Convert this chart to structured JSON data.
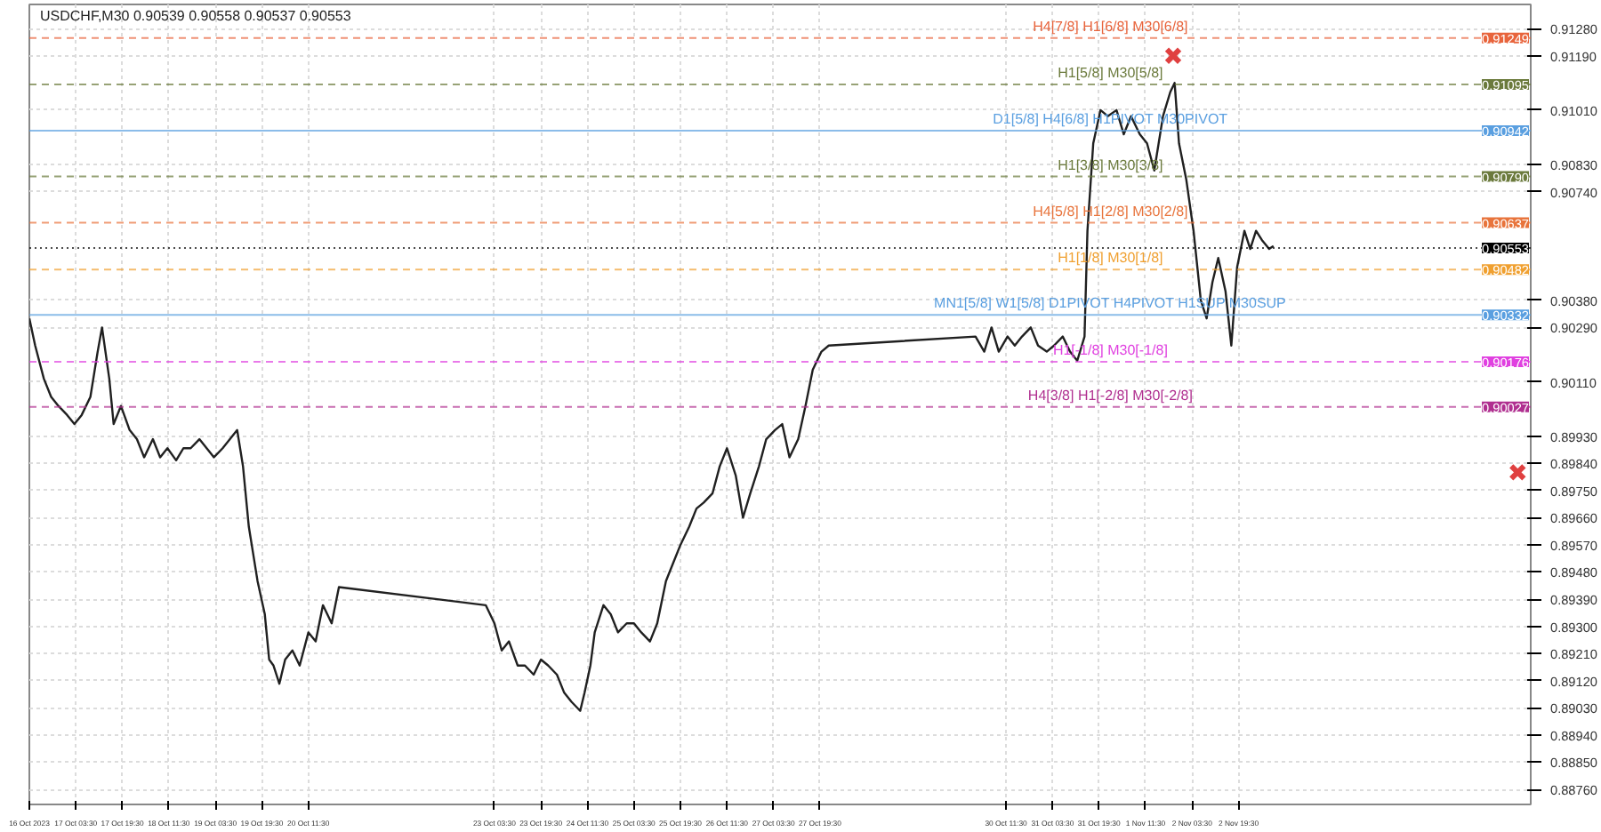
{
  "chart_data": {
    "type": "line",
    "title": "USDCHF,M30  0.90539 0.90558 0.90537 0.90553",
    "xlim": [
      "2023-10-16T11:30",
      "2023-11-07T00:00"
    ],
    "ylim": [
      0.8871,
      0.9136
    ],
    "xticks": [
      {
        "value": "2023-10-16T11:30",
        "label": "16 Oct 2023"
      },
      {
        "value": "2023-10-17T03:30",
        "label": "17 Oct 03:30"
      },
      {
        "value": "2023-10-17T19:30",
        "label": "17 Oct 19:30"
      },
      {
        "value": "2023-10-18T11:30",
        "label": "18 Oct 11:30"
      },
      {
        "value": "2023-10-19T03:30",
        "label": "19 Oct 03:30"
      },
      {
        "value": "2023-10-19T19:30",
        "label": "19 Oct 19:30"
      },
      {
        "value": "2023-10-20T11:30",
        "label": "20 Oct 11:30"
      },
      {
        "value": "2023-10-23T03:30",
        "label": "23 Oct 03:30"
      },
      {
        "value": "2023-10-23T19:30",
        "label": "23 Oct 19:30"
      },
      {
        "value": "2023-10-24T11:30",
        "label": "24 Oct 11:30"
      },
      {
        "value": "2023-10-25T03:30",
        "label": "25 Oct 03:30"
      },
      {
        "value": "2023-10-25T19:30",
        "label": "25 Oct 19:30"
      },
      {
        "value": "2023-10-26T11:30",
        "label": "26 Oct 11:30"
      },
      {
        "value": "2023-10-27T03:30",
        "label": "27 Oct 03:30"
      },
      {
        "value": "2023-10-27T19:30",
        "label": "27 Oct 19:30"
      },
      {
        "value": "2023-10-30T11:30",
        "label": "30 Oct 11:30"
      },
      {
        "value": "2023-10-31T03:30",
        "label": "31 Oct 03:30"
      },
      {
        "value": "2023-10-31T19:30",
        "label": "31 Oct 19:30"
      },
      {
        "value": "2023-11-01T11:30",
        "label": "1 Nov 11:30"
      },
      {
        "value": "2023-11-02T03:30",
        "label": "2 Nov 03:30"
      },
      {
        "value": "2023-11-02T19:30",
        "label": "2 Nov 19:30"
      }
    ],
    "yticks": [
      {
        "value": 0.9128,
        "label": "0.91280"
      },
      {
        "value": 0.9119,
        "label": "0.91190"
      },
      {
        "value": 0.9101,
        "label": "0.91010"
      },
      {
        "value": 0.9083,
        "label": "0.90830"
      },
      {
        "value": 0.9074,
        "label": "0.90740"
      },
      {
        "value": 0.9038,
        "label": "0.90380"
      },
      {
        "value": 0.9029,
        "label": "0.90290"
      },
      {
        "value": 0.9011,
        "label": "0.90110"
      },
      {
        "value": 0.8993,
        "label": "0.89930"
      },
      {
        "value": 0.8984,
        "label": "0.89840"
      },
      {
        "value": 0.8975,
        "label": "0.89750"
      },
      {
        "value": 0.8966,
        "label": "0.89660"
      },
      {
        "value": 0.8957,
        "label": "0.89570"
      },
      {
        "value": 0.8948,
        "label": "0.89480"
      },
      {
        "value": 0.8939,
        "label": "0.89390"
      },
      {
        "value": 0.893,
        "label": "0.89300"
      },
      {
        "value": 0.8921,
        "label": "0.89210"
      },
      {
        "value": 0.8912,
        "label": "0.89120"
      },
      {
        "value": 0.8903,
        "label": "0.89030"
      },
      {
        "value": 0.8894,
        "label": "0.88940"
      },
      {
        "value": 0.8885,
        "label": "0.88850"
      },
      {
        "value": 0.8876,
        "label": "0.88760"
      }
    ],
    "grid": true,
    "annotations": [
      "0.91249",
      "0.91095",
      "0.90942",
      "0.90790",
      "0.90637",
      "0.90553",
      "0.90482",
      "0.90332",
      "0.90176",
      "0.90027"
    ],
    "series": [
      {
        "color": "#202020",
        "line_style": "solid",
        "x": [
          "2023-10-16T11:30",
          "2023-10-16T13:30",
          "2023-10-16T16:30",
          "2023-10-16T19:00",
          "2023-10-16T21:30",
          "2023-10-17T00:30",
          "2023-10-17T03:00",
          "2023-10-17T05:30",
          "2023-10-17T08:30",
          "2023-10-17T11:00",
          "2023-10-17T12:30",
          "2023-10-17T15:00",
          "2023-10-17T16:30",
          "2023-10-17T19:00",
          "2023-10-17T22:00",
          "2023-10-18T00:30",
          "2023-10-18T03:00",
          "2023-10-18T06:00",
          "2023-10-18T08:30",
          "2023-10-18T11:00",
          "2023-10-18T14:00",
          "2023-10-18T16:30",
          "2023-10-18T19:00",
          "2023-10-18T22:00",
          "2023-10-19T00:30",
          "2023-10-19T03:00",
          "2023-10-19T06:00",
          "2023-10-19T08:30",
          "2023-10-19T11:00",
          "2023-10-19T13:00",
          "2023-10-19T15:00",
          "2023-10-19T18:00",
          "2023-10-19T20:30",
          "2023-10-19T22:00",
          "2023-10-19T23:30",
          "2023-10-20T01:30",
          "2023-10-20T03:30",
          "2023-10-20T06:00",
          "2023-10-20T08:30",
          "2023-10-20T11:30",
          "2023-10-20T14:00",
          "2023-10-20T16:30",
          "2023-10-20T19:30",
          "2023-10-20T22:00",
          "2023-10-23T00:30",
          "2023-10-23T03:30",
          "2023-10-23T06:00",
          "2023-10-23T08:30",
          "2023-10-23T11:30",
          "2023-10-23T14:00",
          "2023-10-23T17:00",
          "2023-10-23T19:30",
          "2023-10-23T22:00",
          "2023-10-24T01:00",
          "2023-10-24T03:30",
          "2023-10-24T06:00",
          "2023-10-24T09:00",
          "2023-10-24T10:30",
          "2023-10-24T12:30",
          "2023-10-24T14:00",
          "2023-10-24T17:00",
          "2023-10-24T19:30",
          "2023-10-24T22:00",
          "2023-10-25T01:00",
          "2023-10-25T03:30",
          "2023-10-25T06:00",
          "2023-10-25T09:00",
          "2023-10-25T11:30",
          "2023-10-25T14:30",
          "2023-10-25T17:00",
          "2023-10-25T19:30",
          "2023-10-25T22:30",
          "2023-10-26T01:00",
          "2023-10-26T03:30",
          "2023-10-26T06:30",
          "2023-10-26T09:00",
          "2023-10-26T11:30",
          "2023-10-26T14:30",
          "2023-10-26T17:00",
          "2023-10-26T19:30",
          "2023-10-26T22:30",
          "2023-10-27T01:00",
          "2023-10-27T04:00",
          "2023-10-27T06:30",
          "2023-10-27T09:00",
          "2023-10-27T12:00",
          "2023-10-27T14:30",
          "2023-10-27T17:00",
          "2023-10-27T20:00",
          "2023-10-27T22:30",
          "2023-10-30T01:00",
          "2023-10-30T04:00",
          "2023-10-30T06:30",
          "2023-10-30T09:00",
          "2023-10-30T12:00",
          "2023-10-30T14:30",
          "2023-10-30T17:00",
          "2023-10-30T20:00",
          "2023-10-30T22:30",
          "2023-10-31T01:30",
          "2023-10-31T04:00",
          "2023-10-31T07:00",
          "2023-10-31T09:30",
          "2023-10-31T12:00",
          "2023-10-31T14:30",
          "2023-10-31T15:30",
          "2023-10-31T17:30",
          "2023-10-31T20:00",
          "2023-10-31T22:30",
          "2023-11-01T01:30",
          "2023-11-01T04:00",
          "2023-11-01T06:30",
          "2023-11-01T09:30",
          "2023-11-01T12:00",
          "2023-11-01T14:30",
          "2023-11-01T17:30",
          "2023-11-01T20:00",
          "2023-11-01T21:30",
          "2023-11-01T23:00",
          "2023-11-02T01:30",
          "2023-11-02T04:00",
          "2023-11-02T06:30",
          "2023-11-02T08:30",
          "2023-11-02T10:30",
          "2023-11-02T12:30",
          "2023-11-02T15:00",
          "2023-11-02T17:00",
          "2023-11-02T19:00",
          "2023-11-02T21:30",
          "2023-11-02T23:30",
          "2023-11-03T01:30",
          "2023-11-03T03:30",
          "2023-11-03T06:00",
          "2023-11-03T07:30"
        ],
        "values": [
          0.9032,
          0.9023,
          0.9012,
          0.9006,
          0.9003,
          0.9,
          0.8997,
          0.9,
          0.9006,
          0.9021,
          0.9029,
          0.9012,
          0.8997,
          0.9003,
          0.8995,
          0.8992,
          0.8986,
          0.8992,
          0.8986,
          0.8989,
          0.8985,
          0.8989,
          0.8989,
          0.8992,
          0.8989,
          0.8986,
          0.8989,
          0.8992,
          0.8995,
          0.8983,
          0.8963,
          0.8945,
          0.8934,
          0.8919,
          0.8917,
          0.8911,
          0.8919,
          0.8922,
          0.8917,
          0.8928,
          0.8925,
          0.8937,
          0.8931,
          0.8943,
          0.8937,
          0.8931,
          0.8922,
          0.8925,
          0.8917,
          0.8917,
          0.8914,
          0.8919,
          0.8917,
          0.8914,
          0.8908,
          0.8905,
          0.8902,
          0.8908,
          0.8917,
          0.8928,
          0.8937,
          0.8934,
          0.8928,
          0.8931,
          0.8931,
          0.8928,
          0.8925,
          0.8931,
          0.8945,
          0.8951,
          0.8957,
          0.8963,
          0.8969,
          0.8971,
          0.8974,
          0.8983,
          0.8989,
          0.898,
          0.8966,
          0.8974,
          0.8983,
          0.8992,
          0.8995,
          0.8997,
          0.8986,
          0.8992,
          0.9003,
          0.9015,
          0.9021,
          0.9023,
          0.9026,
          0.9021,
          0.9029,
          0.9021,
          0.9026,
          0.9023,
          0.9026,
          0.9029,
          0.9023,
          0.9021,
          0.9023,
          0.9026,
          0.9021,
          0.9018,
          0.9026,
          0.9061,
          0.909,
          0.9101,
          0.9099,
          0.9101,
          0.9093,
          0.9099,
          0.9093,
          0.909,
          0.9081,
          0.9099,
          0.9107,
          0.911,
          0.909,
          0.9078,
          0.9061,
          0.9038,
          0.9032,
          0.9044,
          0.9052,
          0.9041,
          0.9023,
          0.9049,
          0.9061,
          0.9055,
          0.9061,
          0.9058,
          0.9055,
          0.9056
        ]
      },
      {
        "type": "scatter",
        "color": "#e04040",
        "marker": "cross",
        "x": [
          "2023-11-01T21:00",
          "2023-11-06T19:30"
        ],
        "values": [
          0.9119,
          0.8981
        ]
      }
    ],
    "ref_lines": [
      {
        "axis": "y",
        "value": 0.91249,
        "label": "H4[7/8] H1[6/8] M30[6/8]",
        "color": "#e8643c",
        "line_style": "dashed"
      },
      {
        "axis": "y",
        "value": 0.91095,
        "label": "H1[5/8] M30[5/8]",
        "color": "#6b7a3c",
        "line_style": "dashed"
      },
      {
        "axis": "y",
        "value": 0.90942,
        "label": "D1[5/8] H4[6/8] H1PIVOT M30PIVOT",
        "color": "#5a9fe0",
        "line_style": "solid"
      },
      {
        "axis": "y",
        "value": 0.9079,
        "label": "H1[3/8] M30[3/8]",
        "color": "#6b7a3c",
        "line_style": "dashed"
      },
      {
        "axis": "y",
        "value": 0.90637,
        "label": "H4[5/8] H1[2/8] M30[2/8]",
        "color": "#e8743c",
        "line_style": "dashed"
      },
      {
        "axis": "y",
        "value": 0.90553,
        "label": null,
        "color": "#000000",
        "line_style": "dotted"
      },
      {
        "axis": "y",
        "value": 0.90482,
        "label": "H1[1/8] M30[1/8]",
        "color": "#f0a030",
        "line_style": "dashed"
      },
      {
        "axis": "y",
        "value": 0.90332,
        "label": "MN1[5/8] W1[5/8] D1PIVOT H4PIVOT H1SUP M30SUP",
        "color": "#5a9fe0",
        "line_style": "solid"
      },
      {
        "axis": "y",
        "value": 0.90176,
        "label": "H1[-1/8] M30[-1/8]",
        "color": "#e040e0",
        "line_style": "dashed"
      },
      {
        "axis": "y",
        "value": 0.90027,
        "label": "H4[3/8] H1[-2/8] M30[-2/8]",
        "color": "#b03090",
        "line_style": "dashed"
      }
    ]
  }
}
